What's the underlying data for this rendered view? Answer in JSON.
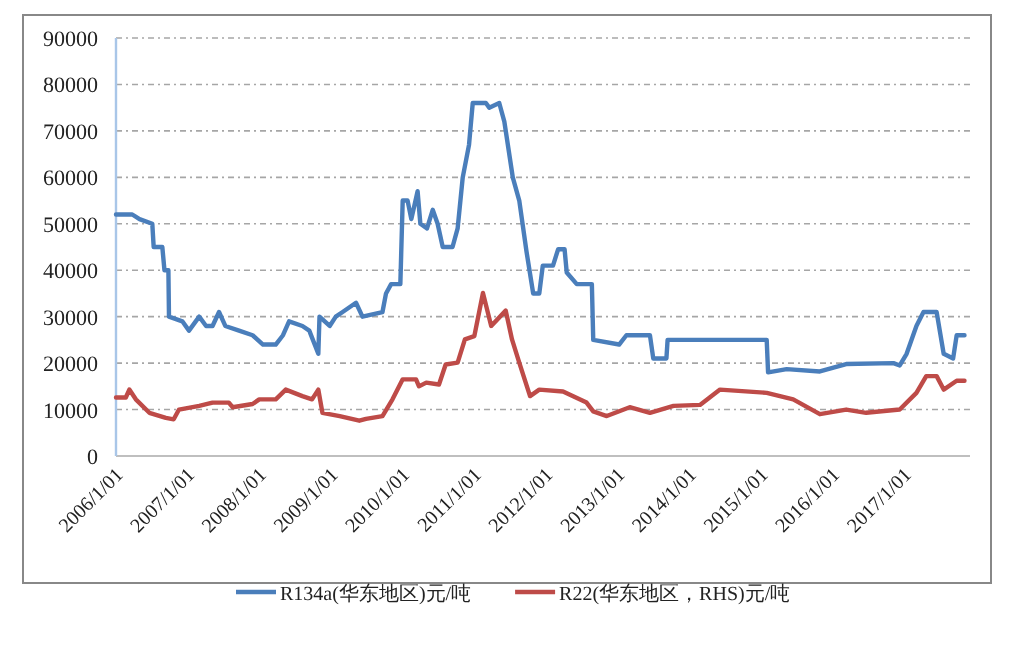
{
  "chart_data": {
    "type": "line",
    "grid": "y",
    "legend": "bottom",
    "xlim": [
      "2006-01-01",
      "2017-12-01"
    ],
    "xticks": [
      {
        "value": "2006-01-01",
        "label": "2006/1/01"
      },
      {
        "value": "2007-01-01",
        "label": "2007/1/01"
      },
      {
        "value": "2008-01-01",
        "label": "2008/1/01"
      },
      {
        "value": "2009-01-01",
        "label": "2009/1/01"
      },
      {
        "value": "2010-01-01",
        "label": "2010/1/01"
      },
      {
        "value": "2011-01-01",
        "label": "2011/1/01"
      },
      {
        "value": "2012-01-01",
        "label": "2012/1/01"
      },
      {
        "value": "2013-01-01",
        "label": "2013/1/01"
      },
      {
        "value": "2014-01-01",
        "label": "2014/1/01"
      },
      {
        "value": "2015-01-01",
        "label": "2015/1/01"
      },
      {
        "value": "2016-01-01",
        "label": "2016/1/01"
      },
      {
        "value": "2017-01-01",
        "label": "2017/1/01"
      }
    ],
    "ylim": [
      0,
      90000
    ],
    "yticks": [
      0,
      10000,
      20000,
      30000,
      40000,
      50000,
      60000,
      70000,
      80000,
      90000
    ],
    "series": [
      {
        "name": "R134a(华东地区)元/吨",
        "color": "#4a7ebb",
        "x": [
          "2006-01-01",
          "2006-03-25",
          "2006-05-01",
          "2006-07-05",
          "2006-07-12",
          "2006-08-25",
          "2006-09-05",
          "2006-09-25",
          "2006-09-28",
          "2006-12-05",
          "2007-01-08",
          "2007-03-01",
          "2007-04-05",
          "2007-05-08",
          "2007-06-10",
          "2007-07-12",
          "2007-09-20",
          "2007-11-28",
          "2008-01-20",
          "2008-03-25",
          "2008-05-01",
          "2008-06-01",
          "2008-08-08",
          "2008-09-12",
          "2008-10-28",
          "2008-11-03",
          "2008-12-25",
          "2009-01-25",
          "2009-03-01",
          "2009-05-08",
          "2009-06-10",
          "2009-09-20",
          "2009-10-08",
          "2009-11-03",
          "2009-12-20",
          "2010-01-01",
          "2010-01-26",
          "2010-02-14",
          "2010-03-18",
          "2010-04-01",
          "2010-05-05",
          "2010-06-03",
          "2010-06-28",
          "2010-07-24",
          "2010-09-12",
          "2010-10-08",
          "2010-11-03",
          "2010-12-05",
          "2010-12-24",
          "2011-03-01",
          "2011-03-18",
          "2011-05-08",
          "2011-06-03",
          "2011-07-16",
          "2011-08-18",
          "2011-09-24",
          "2011-10-28",
          "2011-11-28",
          "2011-12-16",
          "2012-02-06",
          "2012-03-03",
          "2012-04-05",
          "2012-04-16",
          "2012-06-06",
          "2012-08-22",
          "2012-08-29",
          "2013-01-08",
          "2013-02-14",
          "2013-06-14",
          "2013-07-01",
          "2013-09-06",
          "2013-09-12",
          "2015-01-30",
          "2015-02-06",
          "2015-05-12",
          "2015-10-28",
          "2016-03-10",
          "2016-11-06",
          "2016-12-08",
          "2017-01-12",
          "2017-03-03",
          "2017-04-08",
          "2017-06-14",
          "2017-07-20",
          "2017-09-06",
          "2017-09-24",
          "2017-11-03"
        ],
        "values": [
          52000,
          52000,
          51000,
          50000,
          45000,
          45000,
          40000,
          40000,
          30000,
          29000,
          27000,
          30000,
          28000,
          28000,
          31000,
          28000,
          27000,
          26000,
          24000,
          24000,
          26000,
          29000,
          28000,
          27000,
          22000,
          30000,
          28000,
          30000,
          31000,
          33000,
          30000,
          31000,
          35000,
          37000,
          37000,
          55000,
          55000,
          51000,
          57000,
          50000,
          49000,
          53000,
          50000,
          45000,
          45000,
          49000,
          60000,
          67000,
          76000,
          76000,
          75000,
          76000,
          72000,
          60000,
          55000,
          44000,
          35000,
          35000,
          41000,
          41000,
          44500,
          44500,
          39500,
          37000,
          37000,
          25000,
          24000,
          26000,
          26000,
          21000,
          21000,
          25000,
          25000,
          18000,
          18700,
          18200,
          19800,
          20000,
          19500,
          22000,
          28000,
          31000,
          31000,
          22000,
          21000,
          26000,
          26000
        ]
      },
      {
        "name": "R22(华东地区，RHS)元/吨",
        "color": "#be4b48",
        "x": [
          "2006-01-01",
          "2006-02-20",
          "2006-03-10",
          "2006-04-12",
          "2006-06-20",
          "2006-09-12",
          "2006-10-22",
          "2006-11-18",
          "2007-03-01",
          "2007-05-08",
          "2007-07-30",
          "2007-08-18",
          "2007-11-28",
          "2008-01-01",
          "2008-03-25",
          "2008-05-15",
          "2008-08-08",
          "2008-09-26",
          "2008-10-28",
          "2008-11-18",
          "2009-02-14",
          "2009-05-25",
          "2009-06-28",
          "2009-09-20",
          "2009-11-10",
          "2010-01-01",
          "2010-03-10",
          "2010-03-25",
          "2010-05-01",
          "2010-07-05",
          "2010-08-08",
          "2010-10-08",
          "2010-11-14",
          "2011-01-01",
          "2011-02-14",
          "2011-03-28",
          "2011-06-10",
          "2011-07-12",
          "2011-08-18",
          "2011-10-12",
          "2011-11-28",
          "2012-03-28",
          "2012-07-26",
          "2012-08-29",
          "2012-11-06",
          "2013-03-03",
          "2013-06-14",
          "2013-10-12",
          "2014-02-24",
          "2014-06-06",
          "2015-01-30",
          "2015-06-14",
          "2015-10-28",
          "2016-03-10",
          "2016-06-20",
          "2016-12-08",
          "2017-03-03",
          "2017-04-22",
          "2017-06-14",
          "2017-07-20",
          "2017-09-24",
          "2017-11-03"
        ],
        "values": [
          12600,
          12600,
          14300,
          12200,
          9300,
          8200,
          7900,
          10000,
          10800,
          11500,
          11500,
          10500,
          11200,
          12200,
          12200,
          14300,
          12900,
          12200,
          14300,
          9300,
          8600,
          7600,
          8000,
          8600,
          12200,
          16500,
          16500,
          15000,
          15800,
          15400,
          19700,
          20100,
          25100,
          25800,
          35100,
          28000,
          31300,
          25100,
          20100,
          12900,
          14300,
          13900,
          11500,
          9600,
          8600,
          10500,
          9300,
          10800,
          11000,
          14300,
          13600,
          12200,
          9000,
          10000,
          9300,
          10000,
          13600,
          17200,
          17200,
          14300,
          16200,
          16200
        ]
      }
    ]
  }
}
